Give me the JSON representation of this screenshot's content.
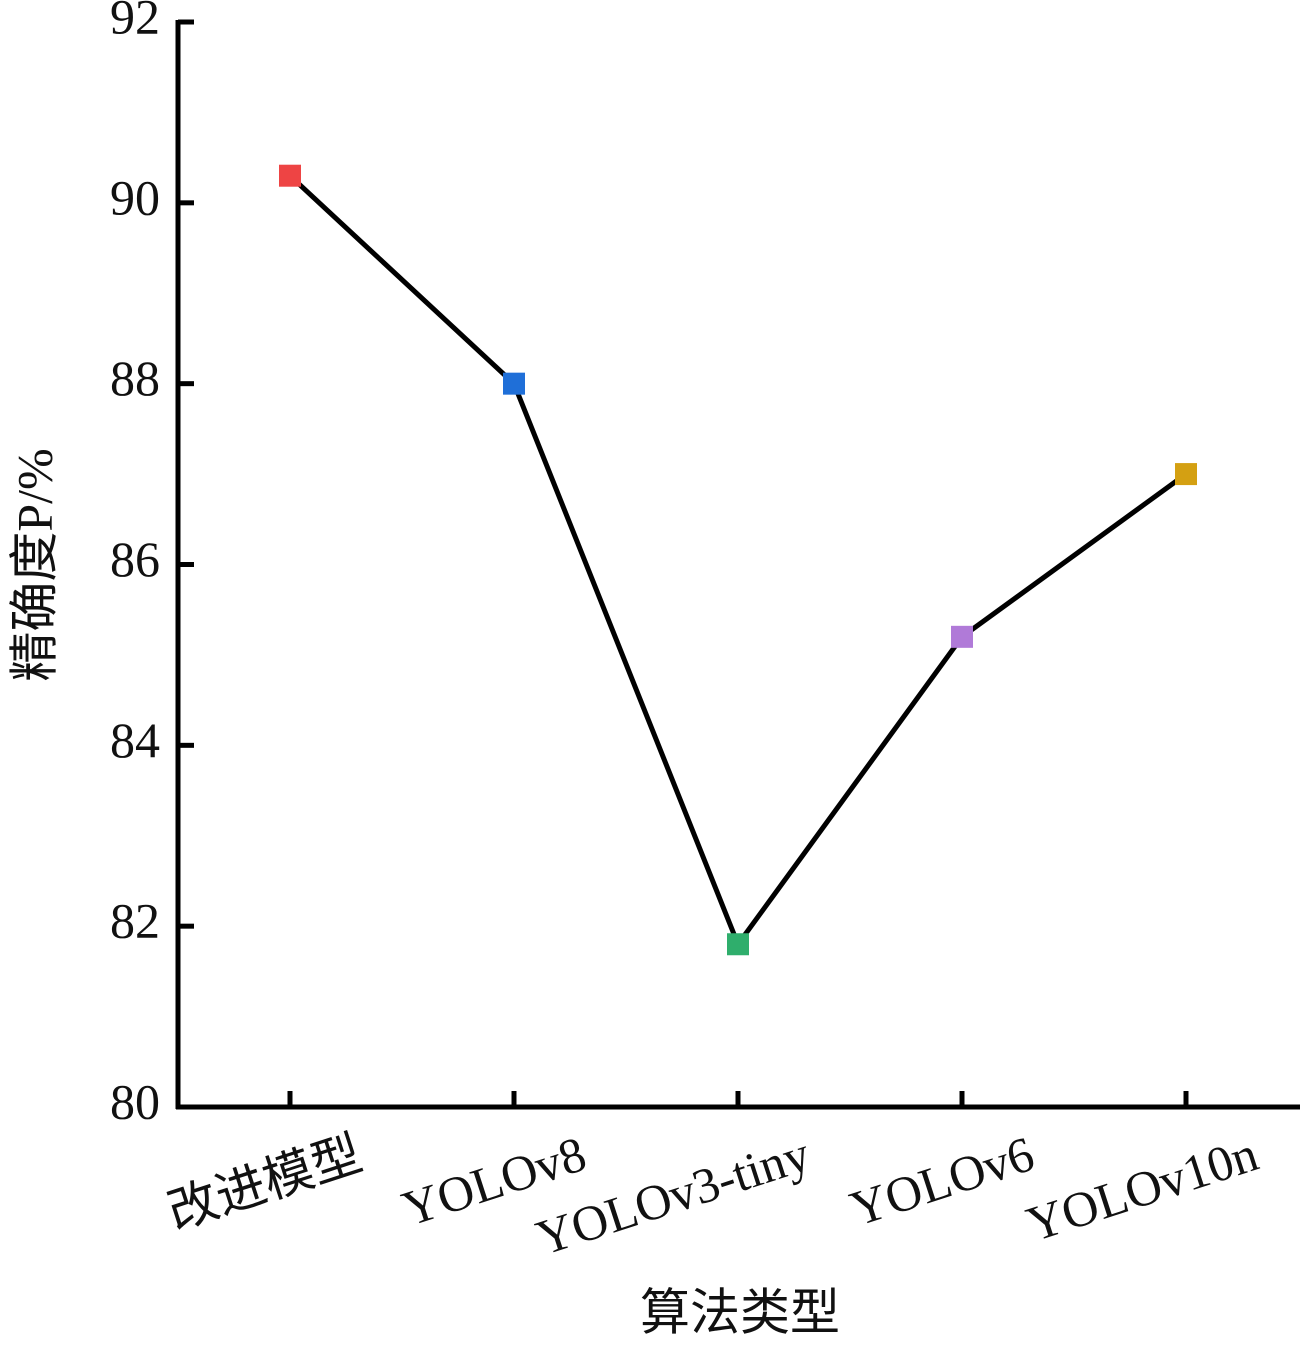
{
  "chart_data": {
    "type": "line",
    "y_label": "精确度P/%",
    "x_label": "算法类型",
    "categories": [
      "改进模型",
      "YOLOv8",
      "YOLOv3-tiny",
      "YOLOv6",
      "YOLOv10n"
    ],
    "series": [
      {
        "color": "#000000",
        "values": [
          90.3,
          88.0,
          81.8,
          85.2,
          87.0
        ]
      }
    ],
    "marker_colors": [
      "#ee4444",
      "#1f6fd8",
      "#2fae6c",
      "#b07ad8",
      "#d4a012"
    ],
    "ylim": [
      80,
      92
    ],
    "yticks": [
      80,
      82,
      84,
      86,
      88,
      90,
      92
    ]
  }
}
